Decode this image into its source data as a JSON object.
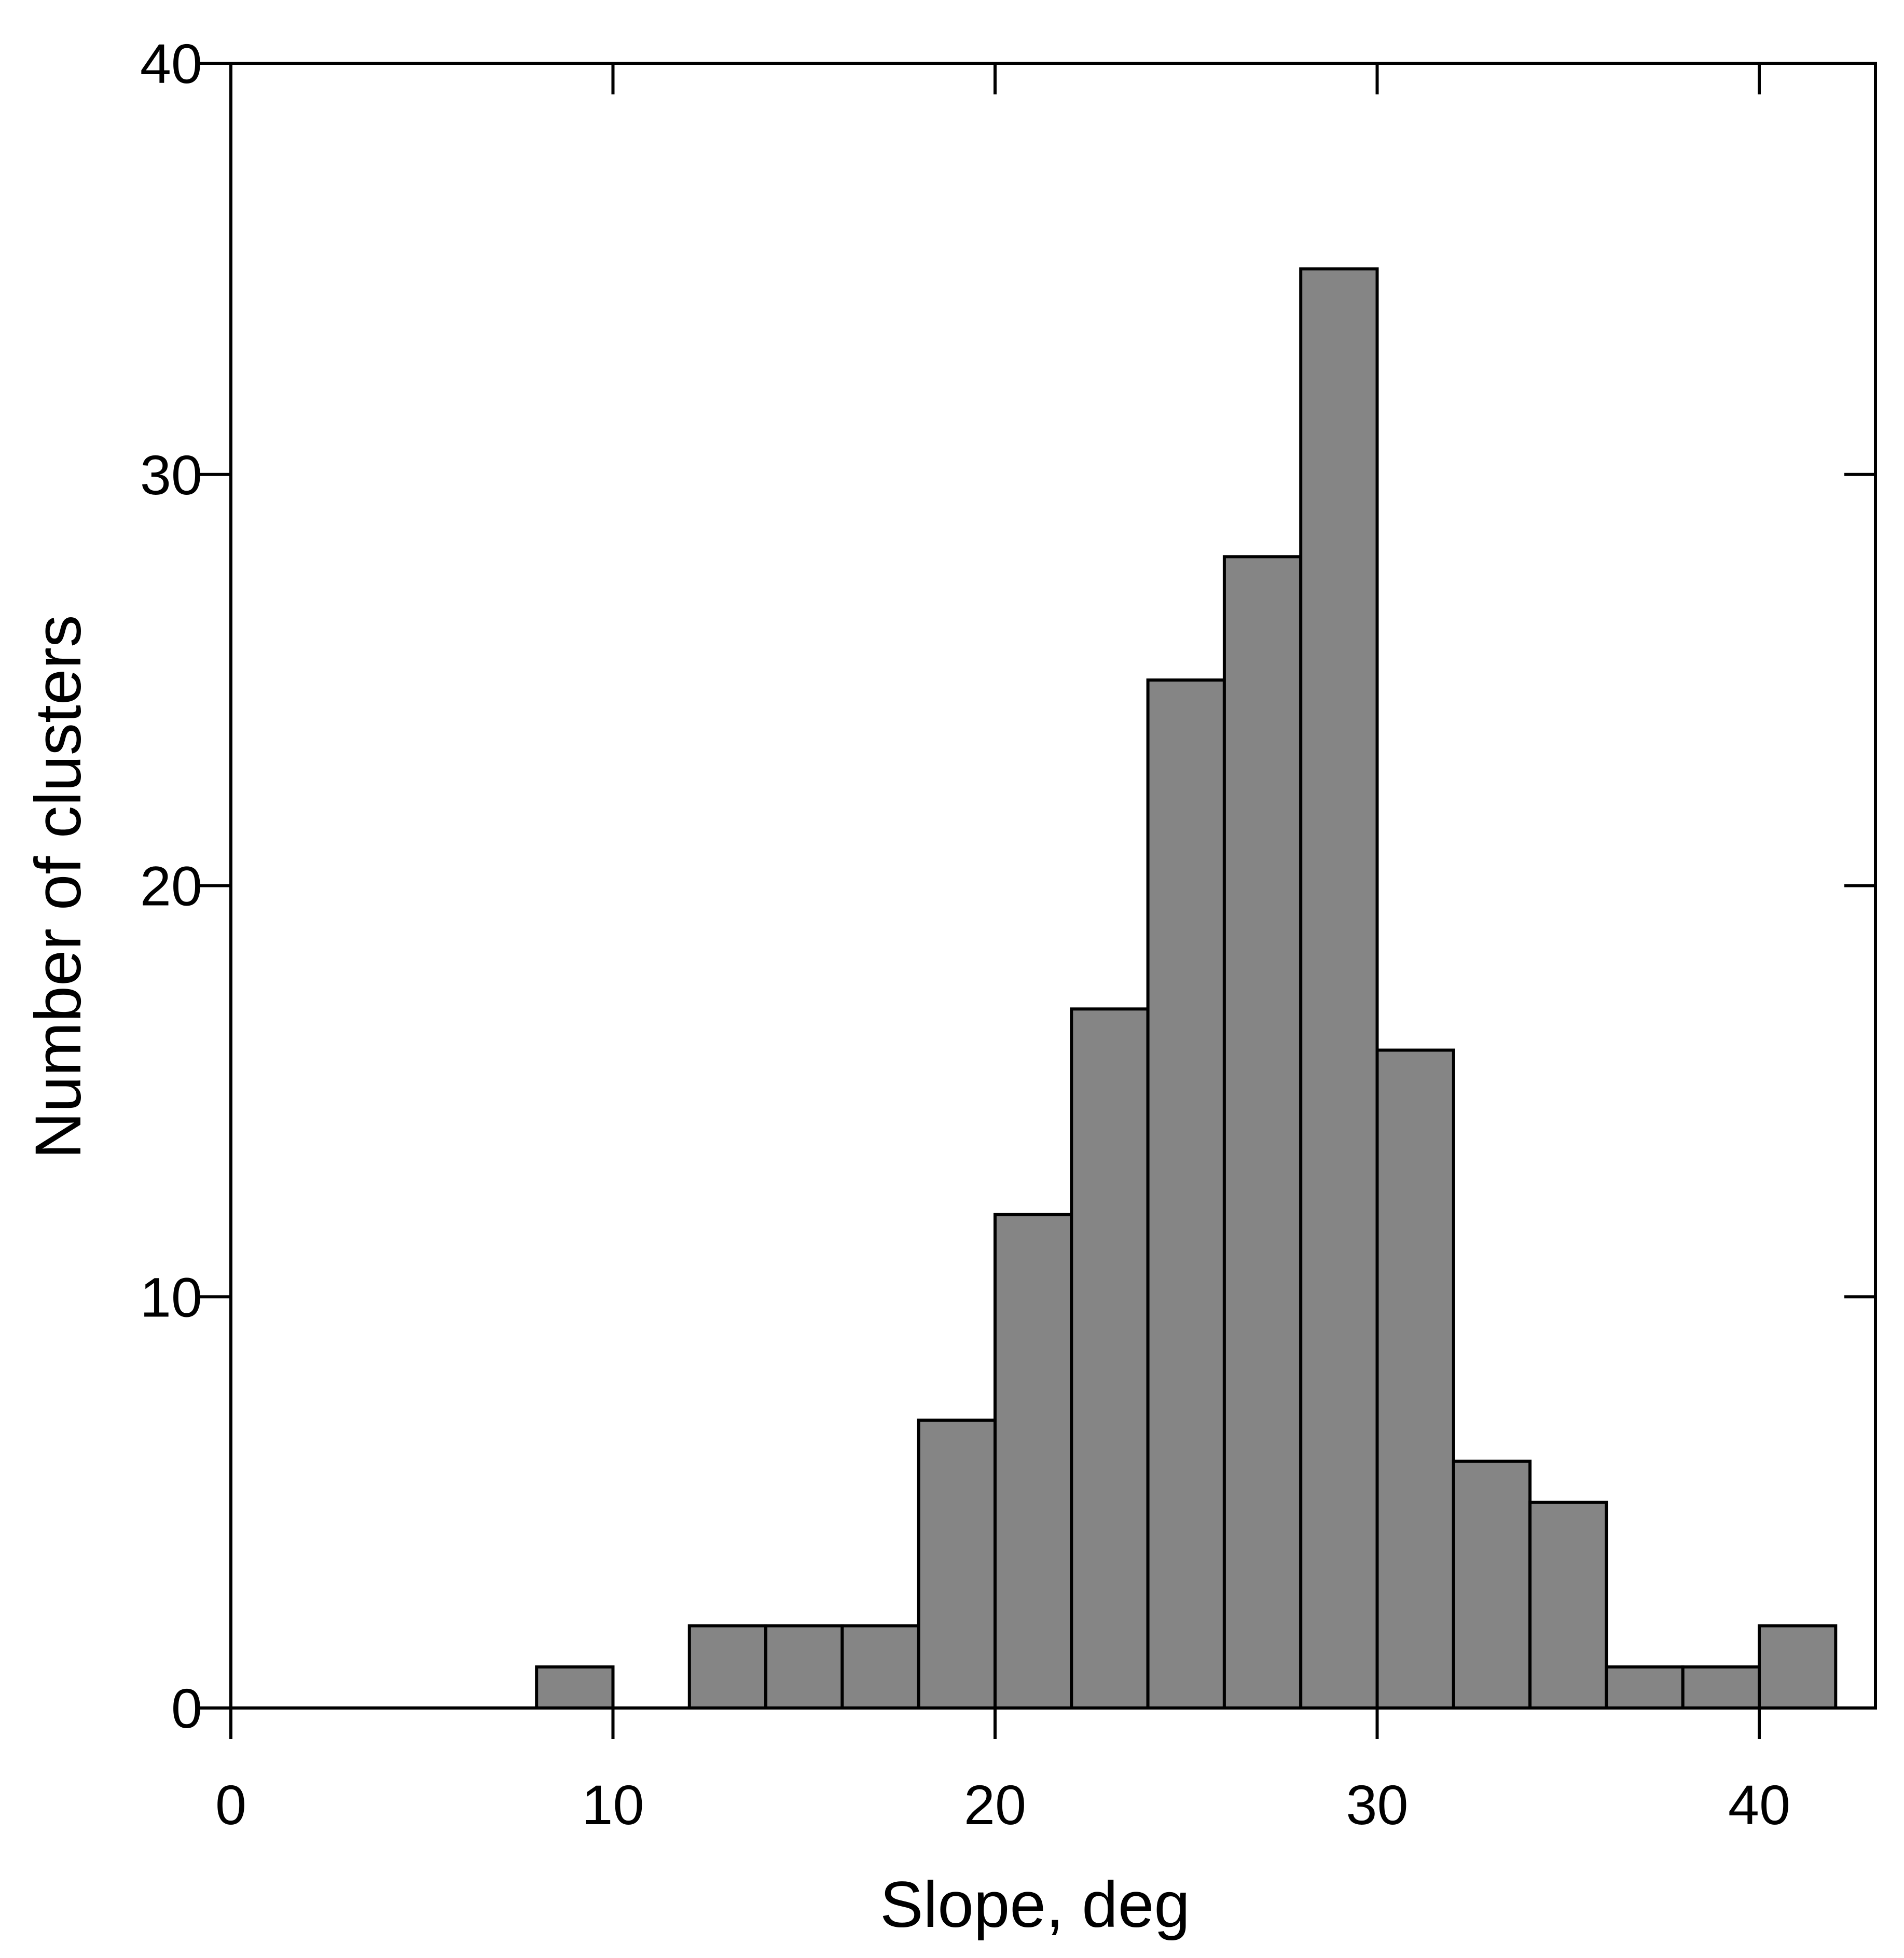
{
  "chart_data": {
    "type": "bar",
    "xlabel": "Slope, deg",
    "ylabel": "Number of clusters",
    "xlim": [
      0,
      43
    ],
    "ylim": [
      0,
      40
    ],
    "bin_width": 2,
    "x_ticks": [
      0,
      10,
      20,
      30,
      40
    ],
    "y_ticks": [
      0,
      10,
      20,
      30,
      40
    ],
    "grid": false,
    "bar_color": "#858585",
    "bins": [
      {
        "x_start": 8,
        "x_end": 10,
        "value": 1
      },
      {
        "x_start": 12,
        "x_end": 14,
        "value": 2
      },
      {
        "x_start": 14,
        "x_end": 16,
        "value": 2
      },
      {
        "x_start": 16,
        "x_end": 18,
        "value": 2
      },
      {
        "x_start": 18,
        "x_end": 20,
        "value": 7
      },
      {
        "x_start": 20,
        "x_end": 22,
        "value": 12
      },
      {
        "x_start": 22,
        "x_end": 24,
        "value": 17
      },
      {
        "x_start": 24,
        "x_end": 26,
        "value": 25
      },
      {
        "x_start": 26,
        "x_end": 28,
        "value": 28
      },
      {
        "x_start": 28,
        "x_end": 30,
        "value": 35
      },
      {
        "x_start": 30,
        "x_end": 32,
        "value": 16
      },
      {
        "x_start": 32,
        "x_end": 34,
        "value": 6
      },
      {
        "x_start": 34,
        "x_end": 36,
        "value": 5
      },
      {
        "x_start": 36,
        "x_end": 38,
        "value": 1
      },
      {
        "x_start": 38,
        "x_end": 40,
        "value": 1
      },
      {
        "x_start": 40,
        "x_end": 42,
        "value": 2
      }
    ]
  }
}
